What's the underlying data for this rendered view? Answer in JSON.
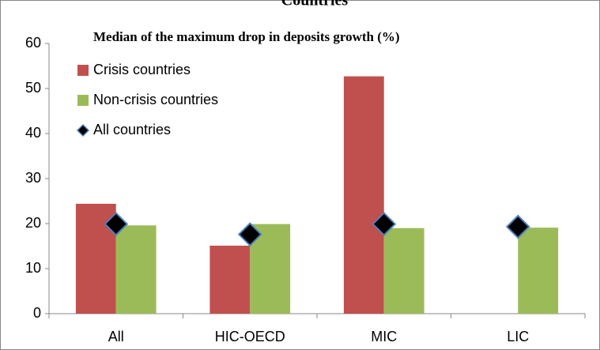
{
  "chart_data": {
    "type": "bar",
    "title": "Countries",
    "annotation": "Median of the maximum drop in deposits growth (%)",
    "categories": [
      "All",
      "HIC-OECD",
      "MIC",
      "LIC"
    ],
    "series": [
      {
        "name": "Crisis countries",
        "color": "#c0504d",
        "values": [
          24.4,
          15.1,
          52.7,
          null
        ]
      },
      {
        "name": "Non-crisis countries",
        "color": "#9bbb59",
        "values": [
          19.6,
          19.9,
          19.0,
          19.1
        ]
      },
      {
        "name": "All countries",
        "type": "scatter",
        "marker": "diamond",
        "color": "#000000",
        "edgecolor": "#4f81bd",
        "values": [
          19.9,
          17.6,
          19.9,
          19.3
        ]
      }
    ],
    "ylim": [
      0,
      60
    ],
    "yticks": [
      0,
      10,
      20,
      30,
      40,
      50,
      60
    ],
    "grid": false,
    "legend": "upper left"
  }
}
